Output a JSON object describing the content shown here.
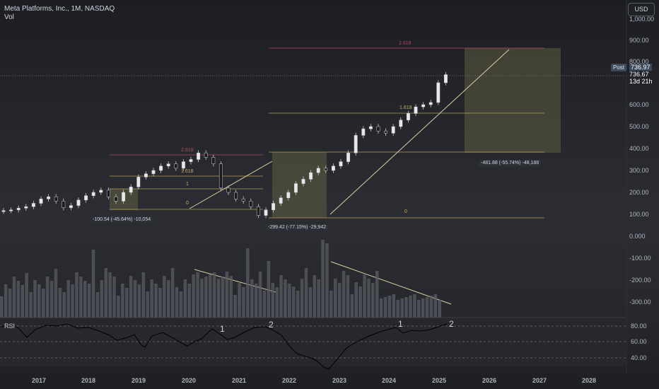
{
  "header": {
    "title": "Meta Platforms, Inc., 1M, NASDAQ",
    "vol_label": "Vol"
  },
  "currency_button": "USD",
  "price_axis": {
    "labels": [
      "1,000.00",
      "900.00",
      "800.00",
      "600.00",
      "500.00",
      "400.00",
      "300.00",
      "200.00",
      "100.00",
      "0.000",
      "-100.00",
      "-200.00",
      "-300.00"
    ]
  },
  "post_badge": "Post",
  "current_price": {
    "post_price": "736.97",
    "last_price": "736.67",
    "countdown": "13d 21h"
  },
  "time_axis": {
    "years": [
      "2017",
      "2018",
      "2019",
      "2020",
      "2021",
      "2022",
      "2023",
      "2024",
      "2025",
      "2026",
      "2027",
      "2028"
    ]
  },
  "rsi": {
    "label": "RSI",
    "levels": [
      "80.00",
      "60.00",
      "40.00"
    ]
  },
  "fib_labels": {
    "top_2618": "2.618",
    "mid_1618": "1.618",
    "left_2618": "2.618",
    "left_1618": "1.618",
    "left_1": "1",
    "left_0": "0",
    "mid_0": "0"
  },
  "range_annotations": {
    "box1": "-100.54 (-45.64%) -10,054",
    "box2": "-299.42 (-77.15%) -29,942",
    "box3": "-481.88 (-55.74%) -48,188"
  },
  "wave_labels": {
    "rsi_1a": "1",
    "rsi_2a": "2",
    "rsi_1b": "1",
    "rsi_2b": "2"
  },
  "colors": {
    "background": "#26282d",
    "candle_up": "#e8e8e8",
    "candle_down": "#1a1a1a",
    "volume": "#5a5c63",
    "fib_gold": "#b79b57",
    "fib_red": "#b24a5a",
    "trend_line": "#d9cfa0",
    "box_fill": "#6b6b45",
    "rsi_line": "#000000"
  },
  "chart_data": {
    "type": "candlestick",
    "symbol": "META",
    "interval": "1M",
    "price_series": [
      117,
      120,
      128,
      135,
      150,
      170,
      180,
      160,
      130,
      140,
      165,
      185,
      200,
      210,
      180,
      160,
      200,
      225,
      270,
      285,
      300,
      320,
      330,
      310,
      340,
      350,
      380,
      360,
      330,
      220,
      200,
      170,
      160,
      135,
      95,
      120,
      150,
      175,
      200,
      240,
      260,
      290,
      310,
      300,
      320,
      340,
      380,
      460,
      490,
      500,
      480,
      470,
      500,
      530,
      560,
      590,
      600,
      610,
      700,
      737
    ],
    "ylim": [
      -300,
      1000
    ]
  }
}
